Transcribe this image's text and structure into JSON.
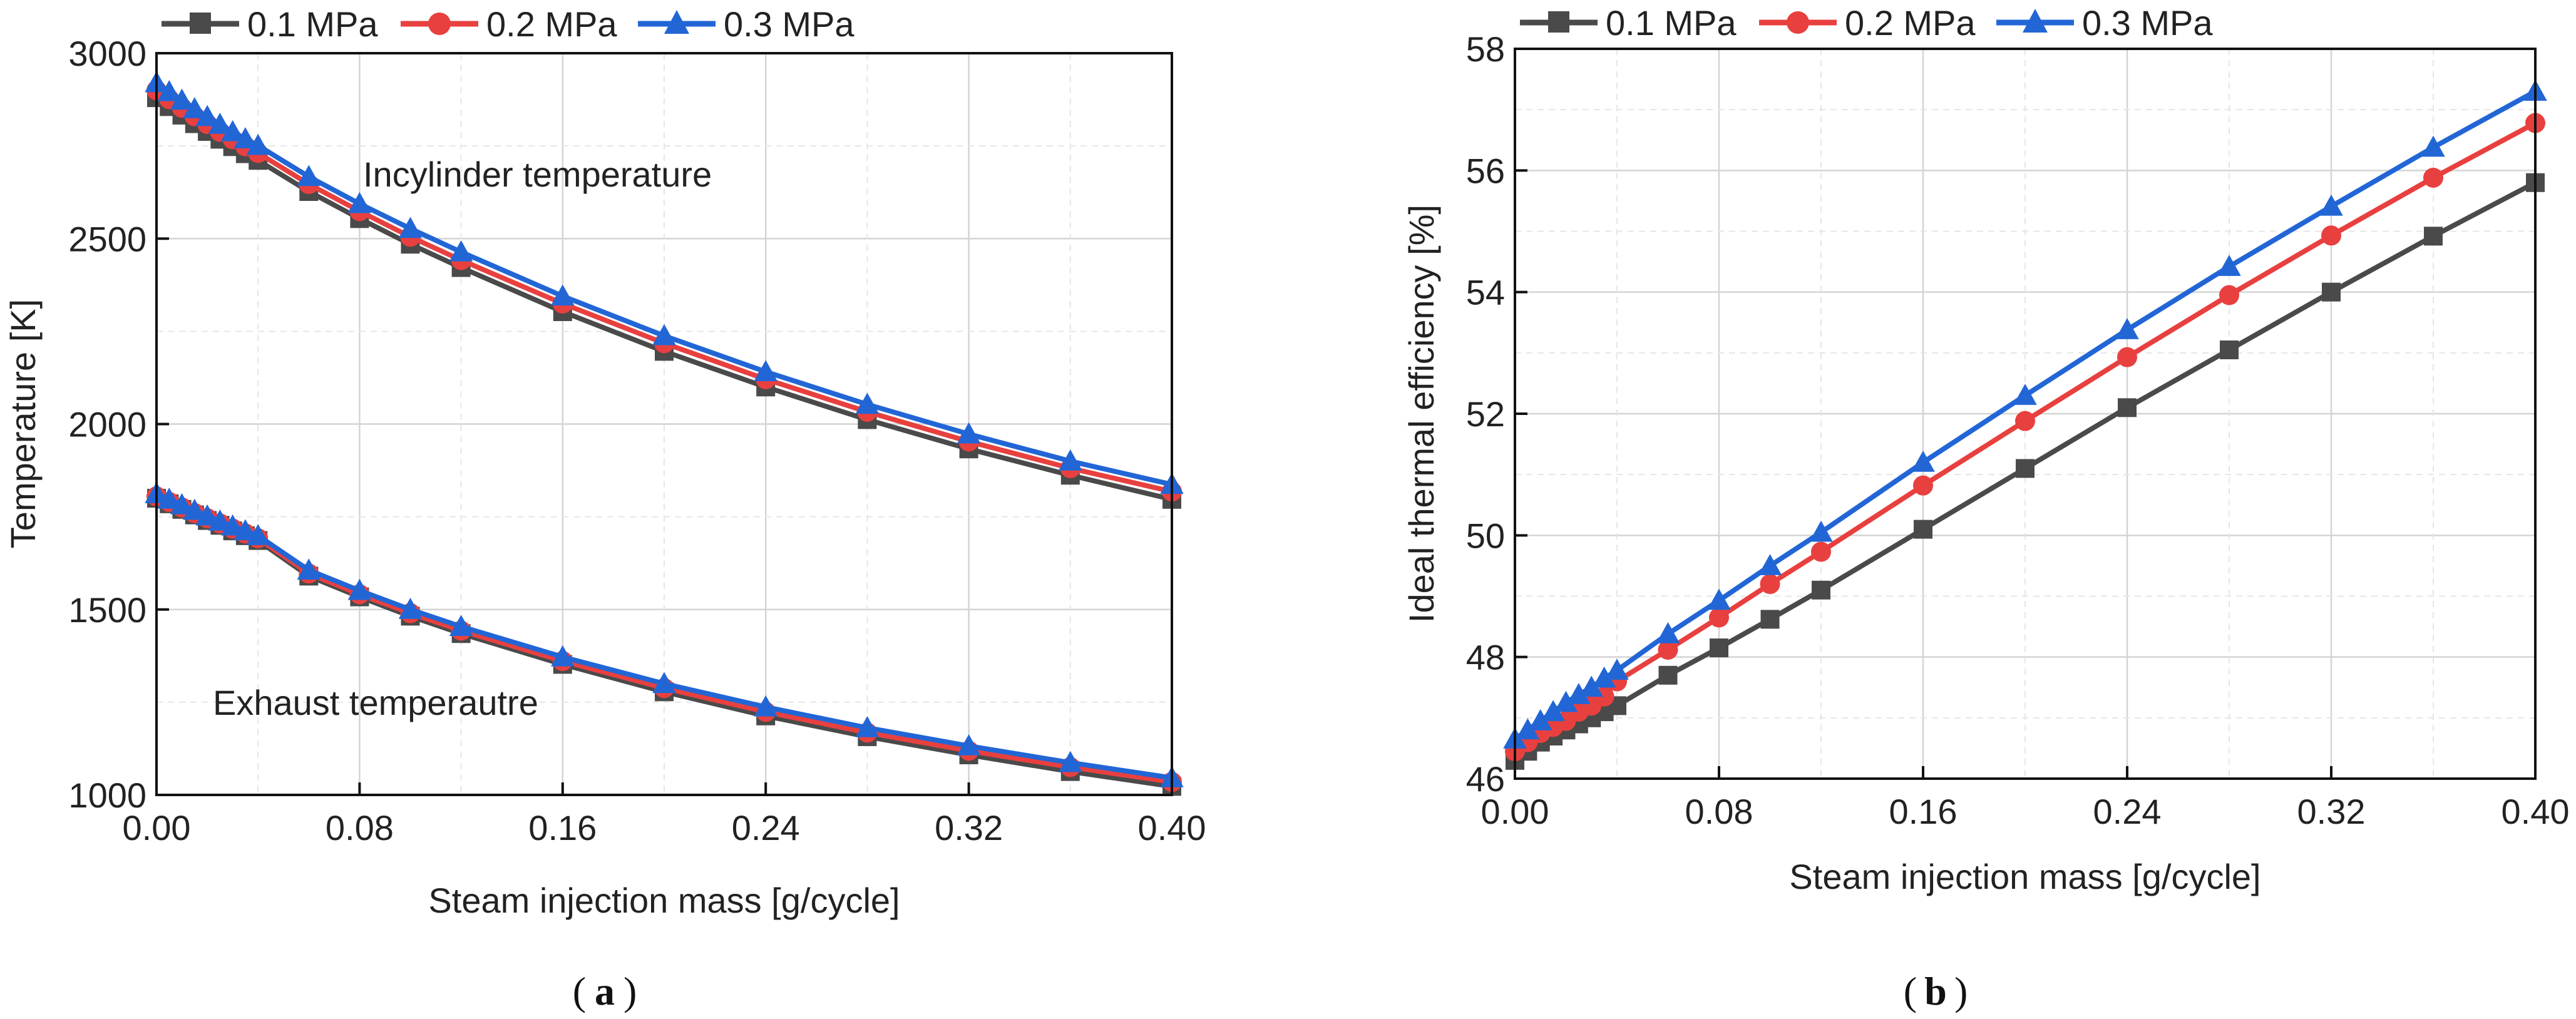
{
  "colors": {
    "s01": "#4a4a4a",
    "s02": "#e8403f",
    "s03": "#2266d6",
    "axis": "#111111",
    "grid": "#d4d4d4"
  },
  "legend_labels": [
    "0.1 MPa",
    "0.2 MPa",
    "0.3 MPa"
  ],
  "captions": {
    "a": "a",
    "b": "b"
  },
  "chart_data": [
    {
      "type": "line",
      "id": "a",
      "title": "",
      "xlabel": "Steam injection mass [g/cycle]",
      "ylabel": "Temperature [K]",
      "xlim": [
        0,
        0.4
      ],
      "ylim": [
        1000,
        3000
      ],
      "xticks": [
        0,
        0.08,
        0.16,
        0.24,
        0.32,
        0.4
      ],
      "xtick_labels": [
        "0.00",
        "0.08",
        "0.16",
        "0.24",
        "0.32",
        "0.40"
      ],
      "yticks": [
        1000,
        1500,
        2000,
        2500,
        3000
      ],
      "ytick_labels": [
        "1000",
        "1500",
        "2000",
        "2500",
        "3000"
      ],
      "grid": true,
      "legend_position": "top",
      "annotations": [
        "Incylinder temperature",
        "Exhaust temperautre"
      ],
      "x": [
        0,
        0.005,
        0.01,
        0.015,
        0.02,
        0.025,
        0.03,
        0.035,
        0.04,
        0.06,
        0.08,
        0.1,
        0.12,
        0.16,
        0.2,
        0.24,
        0.28,
        0.32,
        0.36,
        0.4
      ],
      "series": [
        {
          "name": "0.1 MPa",
          "group": "Incylinder temperature",
          "marker": "square",
          "color": "#4a4a4a",
          "values": [
            2880,
            2856,
            2833,
            2810,
            2789,
            2768,
            2748,
            2729,
            2711,
            2627,
            2554,
            2485,
            2422,
            2303,
            2196,
            2100,
            2012,
            1933,
            1862,
            1797
          ]
        },
        {
          "name": "0.2 MPa",
          "group": "Incylinder temperature",
          "marker": "circle",
          "color": "#e8403f",
          "values": [
            2900,
            2876,
            2853,
            2830,
            2809,
            2788,
            2768,
            2749,
            2731,
            2647,
            2574,
            2505,
            2442,
            2325,
            2218,
            2121,
            2033,
            1953,
            1881,
            1818
          ]
        },
        {
          "name": "0.3 MPa",
          "group": "Incylinder temperature",
          "marker": "triangle",
          "color": "#2266d6",
          "values": [
            2920,
            2896,
            2873,
            2850,
            2829,
            2808,
            2788,
            2769,
            2751,
            2667,
            2594,
            2527,
            2464,
            2345,
            2238,
            2141,
            2053,
            1973,
            1900,
            1837
          ]
        },
        {
          "name": "0.1 MPa",
          "group": "Exhaust temperautre",
          "marker": "square",
          "color": "#4a4a4a",
          "values": [
            1800,
            1785,
            1770,
            1755,
            1740,
            1727,
            1712,
            1699,
            1686,
            1590,
            1534,
            1482,
            1435,
            1352,
            1278,
            1213,
            1157,
            1108,
            1063,
            1023
          ]
        },
        {
          "name": "0.2 MPa",
          "group": "Exhaust temperautre",
          "marker": "circle",
          "color": "#e8403f",
          "values": [
            1805,
            1790,
            1775,
            1760,
            1746,
            1732,
            1718,
            1705,
            1692,
            1597,
            1541,
            1490,
            1443,
            1361,
            1288,
            1224,
            1168,
            1119,
            1075,
            1035
          ]
        },
        {
          "name": "0.3 MPa",
          "group": "Exhaust temperautre",
          "marker": "triangle",
          "color": "#2266d6",
          "values": [
            1812,
            1797,
            1782,
            1767,
            1752,
            1738,
            1725,
            1712,
            1699,
            1606,
            1551,
            1500,
            1454,
            1372,
            1300,
            1237,
            1181,
            1132,
            1087,
            1046
          ]
        }
      ]
    },
    {
      "type": "line",
      "id": "b",
      "title": "",
      "xlabel": "Steam injection mass [g/cycle]",
      "ylabel": "Ideal thermal efficiency [%]",
      "xlim": [
        0,
        0.4
      ],
      "ylim": [
        46,
        58
      ],
      "xticks": [
        0,
        0.08,
        0.16,
        0.24,
        0.32,
        0.4
      ],
      "xtick_labels": [
        "0.00",
        "0.08",
        "0.16",
        "0.24",
        "0.32",
        "0.40"
      ],
      "yticks": [
        46,
        48,
        50,
        52,
        54,
        56,
        58
      ],
      "ytick_labels": [
        "46",
        "48",
        "50",
        "52",
        "54",
        "56",
        "58"
      ],
      "grid": true,
      "legend_position": "top",
      "x": [
        0,
        0.005,
        0.01,
        0.015,
        0.02,
        0.025,
        0.03,
        0.035,
        0.04,
        0.06,
        0.08,
        0.1,
        0.12,
        0.16,
        0.2,
        0.24,
        0.28,
        0.32,
        0.36,
        0.4
      ],
      "series": [
        {
          "name": "0.1 MPa",
          "marker": "square",
          "color": "#4a4a4a",
          "values": [
            46.3,
            46.45,
            46.6,
            46.7,
            46.8,
            46.9,
            47.0,
            47.1,
            47.2,
            47.7,
            48.15,
            48.62,
            49.1,
            50.1,
            51.1,
            52.1,
            53.05,
            54.0,
            54.92,
            55.8
          ]
        },
        {
          "name": "0.2 MPa",
          "marker": "circle",
          "color": "#e8403f",
          "values": [
            46.45,
            46.6,
            46.75,
            46.85,
            46.95,
            47.1,
            47.2,
            47.35,
            47.6,
            48.12,
            48.65,
            49.2,
            49.73,
            50.82,
            51.88,
            52.93,
            53.95,
            54.93,
            55.88,
            56.78
          ]
        },
        {
          "name": "0.3 MPa",
          "marker": "triangle",
          "color": "#2266d6",
          "values": [
            46.65,
            46.8,
            46.95,
            47.1,
            47.25,
            47.38,
            47.5,
            47.65,
            47.78,
            48.38,
            48.93,
            49.5,
            50.05,
            51.2,
            52.3,
            53.38,
            54.42,
            55.41,
            56.38,
            57.3
          ]
        }
      ]
    }
  ]
}
